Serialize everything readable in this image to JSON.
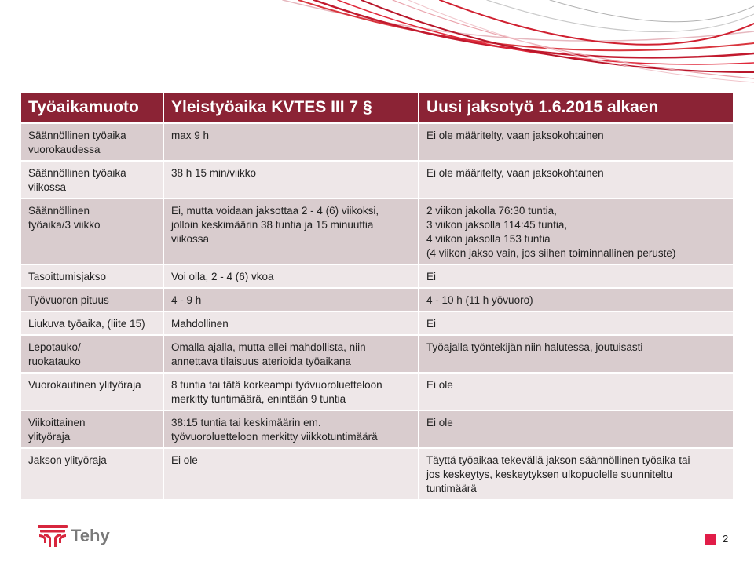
{
  "colors": {
    "header_bg": "#8b2335",
    "row_dark": "#d9ccce",
    "row_light": "#eee7e8",
    "accent": "#e11d48",
    "logo_red": "#d7263d",
    "logo_gray": "#7a7a7a"
  },
  "table": {
    "headers": [
      "Työaikamuoto",
      "Yleistyöaika KVTES III 7 §",
      "Uusi jaksotyö 1.6.2015 alkaen"
    ],
    "rows": [
      {
        "c1": [
          "Säännöllinen työaika",
          "vuorokaudessa"
        ],
        "c2": [
          "max 9 h"
        ],
        "c3": [
          "Ei ole määritelty, vaan jaksokohtainen"
        ]
      },
      {
        "c1": [
          "Säännöllinen työaika",
          "viikossa"
        ],
        "c2": [
          "38 h 15 min/viikko"
        ],
        "c3": [
          "Ei ole määritelty, vaan jaksokohtainen"
        ]
      },
      {
        "c1": [
          "Säännöllinen",
          "työaika/3 viikko"
        ],
        "c2": [
          "Ei, mutta voidaan jaksottaa 2 - 4 (6) viikoksi,",
          "jolloin keskimäärin 38 tuntia ja 15 minuuttia",
          "viikossa"
        ],
        "c3": [
          "2 viikon jakolla 76:30 tuntia,",
          "3 viikon jaksolla 114:45 tuntia,",
          "4 viikon jaksolla 153 tuntia",
          "(4 viikon jakso vain, jos siihen toiminnallinen peruste)"
        ]
      },
      {
        "c1": [
          "Tasoittumisjakso"
        ],
        "c2": [
          "Voi olla, 2 - 4 (6) vkoa"
        ],
        "c3": [
          "Ei"
        ]
      },
      {
        "c1": [
          "Työvuoron pituus"
        ],
        "c2": [
          "4 - 9 h"
        ],
        "c3": [
          "4 - 10 h (11 h yövuoro)"
        ]
      },
      {
        "c1": [
          "Liukuva työaika, (liite 15)"
        ],
        "c2": [
          "Mahdollinen"
        ],
        "c3": [
          "Ei"
        ]
      },
      {
        "c1": [
          "Lepotauko/",
          "ruokatauko"
        ],
        "c2": [
          "Omalla ajalla, mutta ellei mahdollista, niin",
          "annettava tilaisuus aterioida työaikana"
        ],
        "c3": [
          "Työajalla työntekijän niin halutessa, joutuisasti"
        ]
      },
      {
        "c1": [
          "Vuorokautinen ylityöraja"
        ],
        "c2": [
          "8 tuntia tai tätä korkeampi työvuoroluetteloon",
          "merkitty tuntimäärä, enintään 9 tuntia"
        ],
        "c3": [
          "Ei ole"
        ]
      },
      {
        "c1": [
          "Viikoittainen",
          "ylityöraja"
        ],
        "c2": [
          "38:15 tuntia tai keskimäärin em.",
          "työvuoroluetteloon merkitty viikkotuntimäärä"
        ],
        "c3": [
          "Ei ole"
        ]
      },
      {
        "c1": [
          "Jakson ylityöraja"
        ],
        "c2": [
          "Ei ole"
        ],
        "c3": [
          "Täyttä työaikaa tekevällä jakson säännöllinen työaika tai",
          "jos keskeytys, keskeytyksen ulkopuolelle suunniteltu",
          "tuntimäärä"
        ]
      }
    ]
  },
  "logo": {
    "text": "Tehy",
    "icon": "tehy-emblem-icon"
  },
  "footer": {
    "page_number": "2",
    "marker_icon": "page-marker-square"
  },
  "decoration": {
    "icon": "red-swoosh-lines"
  }
}
